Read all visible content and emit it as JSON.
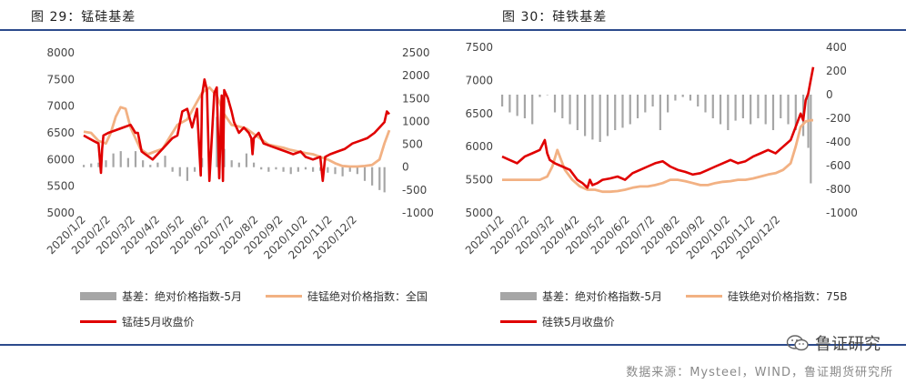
{
  "left": {
    "title": "图 29：锰硅基差",
    "legend": {
      "basis": "基差：绝对价格指数-5月",
      "index": "硅锰绝对价格指数：全国",
      "close": "锰硅5月收盘价"
    }
  },
  "right": {
    "title": "图 30：硅铁基差",
    "legend": {
      "basis": "基差：绝对价格指数-5月",
      "index": "硅铁绝对价格指数：75B",
      "close": "硅铁5月收盘价"
    }
  },
  "footer": {
    "watermark": "鲁证研究",
    "source": "数据来源：Mysteel，WIND，鲁证期货研究所"
  },
  "colors": {
    "basis": "#a6a6a6",
    "index": "#f2b183",
    "close": "#e00000",
    "rule": "#2c4a8c"
  },
  "chart_data": [
    {
      "type": "bar",
      "title": "图 29：锰硅基差",
      "x_ticks": [
        "2020/1/2",
        "2020/2/2",
        "2020/3/2",
        "2020/4/2",
        "2020/5/2",
        "2020/6/2",
        "2020/7/2",
        "2020/8/2",
        "2020/9/2",
        "2020/10/2",
        "2020/11/2",
        "2020/12/2"
      ],
      "y_left": {
        "lim": [
          5000,
          8000
        ],
        "ticks": [
          5000,
          5500,
          6000,
          6500,
          7000,
          7500,
          8000
        ]
      },
      "y_right": {
        "lim": [
          -1000,
          2500
        ],
        "ticks": [
          -1000,
          -500,
          0,
          500,
          1000,
          1500,
          2000,
          2500
        ]
      },
      "x_range": [
        0,
        12.4
      ],
      "series": [
        {
          "name": "基差：绝对价格指数-5月",
          "kind": "bar",
          "axis": "right",
          "x": [
            0.0,
            0.3,
            0.6,
            0.9,
            1.2,
            1.5,
            1.8,
            2.1,
            2.4,
            2.7,
            3.0,
            3.3,
            3.6,
            3.9,
            4.2,
            4.5,
            4.8,
            5.1,
            5.4,
            5.7,
            6.0,
            6.3,
            6.6,
            6.9,
            7.2,
            7.5,
            7.8,
            8.1,
            8.4,
            8.7,
            9.0,
            9.3,
            9.6,
            9.9,
            10.2,
            10.5,
            10.8,
            11.1,
            11.4,
            11.7,
            12.0,
            12.2
          ],
          "y": [
            50,
            80,
            100,
            150,
            300,
            350,
            200,
            350,
            150,
            50,
            100,
            250,
            -100,
            -200,
            -300,
            -100,
            200,
            300,
            1100,
            400,
            150,
            100,
            300,
            100,
            -50,
            -100,
            -50,
            -100,
            -150,
            -100,
            -50,
            -100,
            -80,
            -120,
            -150,
            -200,
            -100,
            -150,
            -300,
            -400,
            -500,
            -550
          ]
        },
        {
          "name": "硅锰绝对价格指数：全国",
          "kind": "line",
          "axis": "left",
          "x": [
            0,
            0.3,
            0.6,
            0.9,
            1.1,
            1.3,
            1.5,
            1.7,
            1.9,
            2.1,
            2.3,
            2.6,
            2.9,
            3.2,
            3.4,
            3.6,
            3.8,
            4.0,
            4.2,
            4.5,
            4.8,
            5.1,
            5.4,
            5.7,
            6.0,
            6.3,
            6.6,
            6.9,
            7.2,
            7.5,
            7.8,
            8.1,
            8.4,
            8.7,
            9.0,
            9.3,
            9.6,
            9.9,
            10.2,
            10.5,
            10.8,
            11.1,
            11.4,
            11.7,
            12.0,
            12.2,
            12.4
          ],
          "y": [
            6520,
            6500,
            6350,
            6300,
            6500,
            6800,
            6980,
            6950,
            6600,
            6400,
            6200,
            6100,
            6150,
            6200,
            6350,
            6500,
            6650,
            6700,
            6750,
            7000,
            7250,
            7350,
            7200,
            6850,
            6650,
            6620,
            6580,
            6480,
            6380,
            6280,
            6250,
            6220,
            6180,
            6150,
            6120,
            6100,
            6050,
            6000,
            5930,
            5880,
            5870,
            5870,
            5880,
            5900,
            6000,
            6300,
            6550
          ]
        },
        {
          "name": "锰硅5月收盘价",
          "kind": "line",
          "axis": "left",
          "x": [
            0,
            0.2,
            0.4,
            0.6,
            0.7,
            0.75,
            0.8,
            1.0,
            1.3,
            1.6,
            1.9,
            2.1,
            2.2,
            2.35,
            2.5,
            2.8,
            3.1,
            3.4,
            3.6,
            3.8,
            4.0,
            4.2,
            4.4,
            4.6,
            4.75,
            4.8,
            4.9,
            5.0,
            5.1,
            5.3,
            5.4,
            5.5,
            5.6,
            5.65,
            5.7,
            5.85,
            6.0,
            6.1,
            6.3,
            6.5,
            6.7,
            6.8,
            6.85,
            6.9,
            7.1,
            7.3,
            7.6,
            7.9,
            8.2,
            8.5,
            8.8,
            9.0,
            9.3,
            9.6,
            9.7,
            9.8,
            10.0,
            10.3,
            10.6,
            10.9,
            11.2,
            11.5,
            11.8,
            12.0,
            12.2,
            12.3,
            12.4
          ],
          "y": [
            6450,
            6400,
            6350,
            6300,
            5750,
            6200,
            6450,
            6500,
            6550,
            6600,
            6650,
            6500,
            6500,
            6150,
            6100,
            6000,
            6150,
            6300,
            6400,
            6450,
            6900,
            6950,
            6600,
            6950,
            5700,
            7200,
            7500,
            7300,
            5600,
            7250,
            7350,
            5650,
            7200,
            5600,
            7300,
            7150,
            6900,
            6700,
            6500,
            6600,
            6500,
            6400,
            6100,
            6400,
            6500,
            6300,
            6250,
            6200,
            6150,
            6100,
            6150,
            6050,
            6000,
            6050,
            5600,
            6050,
            6100,
            6150,
            6200,
            6300,
            6350,
            6400,
            6500,
            6600,
            6700,
            6900,
            6850
          ]
        }
      ]
    },
    {
      "type": "bar",
      "title": "图 30：硅铁基差",
      "x_ticks": [
        "2020/1/2",
        "2020/2/2",
        "2020/3/2",
        "2020/4/2",
        "2020/5/2",
        "2020/6/2",
        "2020/7/2",
        "2020/8/2",
        "2020/9/2",
        "2020/10/2",
        "2020/11/2",
        "2020/12/2"
      ],
      "y_left": {
        "lim": [
          5000,
          7500
        ],
        "ticks": [
          5000,
          5500,
          6000,
          6500,
          7000,
          7500
        ]
      },
      "y_right": {
        "lim": [
          -1000,
          400
        ],
        "ticks": [
          -1000,
          -800,
          -600,
          -400,
          -200,
          0,
          200,
          400
        ]
      },
      "x_range": [
        0,
        12.4
      ],
      "series": [
        {
          "name": "基差：绝对价格指数-5月",
          "kind": "bar",
          "axis": "right",
          "x": [
            0.0,
            0.3,
            0.6,
            0.9,
            1.2,
            1.5,
            1.8,
            2.1,
            2.4,
            2.7,
            3.0,
            3.3,
            3.6,
            3.9,
            4.2,
            4.5,
            4.8,
            5.1,
            5.4,
            5.7,
            6.0,
            6.3,
            6.6,
            6.9,
            7.2,
            7.5,
            7.8,
            8.1,
            8.4,
            8.7,
            9.0,
            9.3,
            9.6,
            9.9,
            10.2,
            10.5,
            10.8,
            11.1,
            11.4,
            11.7,
            12.0,
            12.2,
            12.3
          ],
          "y": [
            -100,
            -150,
            -180,
            -200,
            -250,
            -20,
            0,
            -150,
            -200,
            -250,
            -300,
            -350,
            -380,
            -400,
            -350,
            -300,
            -280,
            -250,
            -200,
            -150,
            -100,
            -300,
            -150,
            -50,
            -20,
            -50,
            -100,
            -150,
            -200,
            -250,
            -300,
            -220,
            -200,
            -250,
            -200,
            -250,
            -300,
            -200,
            -250,
            -300,
            -350,
            -450,
            -750
          ]
        },
        {
          "name": "硅铁绝对价格指数：75B",
          "kind": "line",
          "axis": "left",
          "x": [
            0,
            0.5,
            1.0,
            1.5,
            1.8,
            2.0,
            2.2,
            2.5,
            2.8,
            3.1,
            3.4,
            3.7,
            4.0,
            4.3,
            4.6,
            4.9,
            5.2,
            5.5,
            5.8,
            6.1,
            6.4,
            6.7,
            7.0,
            7.3,
            7.6,
            7.9,
            8.2,
            8.5,
            8.8,
            9.1,
            9.4,
            9.7,
            10.0,
            10.3,
            10.6,
            10.9,
            11.2,
            11.5,
            11.7,
            11.9,
            12.1,
            12.3,
            12.4
          ],
          "y": [
            5500,
            5500,
            5500,
            5500,
            5550,
            5700,
            5950,
            5650,
            5500,
            5400,
            5350,
            5350,
            5320,
            5320,
            5330,
            5350,
            5380,
            5400,
            5400,
            5420,
            5450,
            5500,
            5500,
            5480,
            5450,
            5420,
            5420,
            5450,
            5470,
            5480,
            5500,
            5500,
            5520,
            5550,
            5580,
            5600,
            5650,
            5750,
            6000,
            6300,
            6380,
            6400,
            6400
          ]
        },
        {
          "name": "硅铁5月收盘价",
          "kind": "line",
          "axis": "left",
          "x": [
            0,
            0.3,
            0.6,
            0.9,
            1.2,
            1.5,
            1.7,
            1.8,
            1.9,
            2.1,
            2.4,
            2.7,
            3.0,
            3.2,
            3.4,
            3.5,
            3.6,
            3.8,
            4.0,
            4.3,
            4.6,
            4.9,
            5.2,
            5.5,
            5.8,
            6.1,
            6.4,
            6.7,
            7.0,
            7.3,
            7.6,
            7.9,
            8.2,
            8.5,
            8.8,
            9.1,
            9.4,
            9.7,
            10.0,
            10.3,
            10.6,
            10.9,
            11.2,
            11.5,
            11.7,
            11.9,
            12.0,
            12.1,
            12.2,
            12.3,
            12.4
          ],
          "y": [
            5850,
            5800,
            5750,
            5850,
            5900,
            5950,
            6100,
            5900,
            5800,
            5750,
            5700,
            5650,
            5500,
            5450,
            5380,
            5500,
            5420,
            5450,
            5500,
            5520,
            5550,
            5500,
            5600,
            5650,
            5700,
            5750,
            5780,
            5700,
            5650,
            5620,
            5580,
            5600,
            5650,
            5700,
            5750,
            5800,
            5750,
            5780,
            5850,
            5900,
            5950,
            5900,
            6000,
            6100,
            6300,
            6500,
            6400,
            6700,
            6800,
            7000,
            7200
          ]
        }
      ]
    }
  ]
}
